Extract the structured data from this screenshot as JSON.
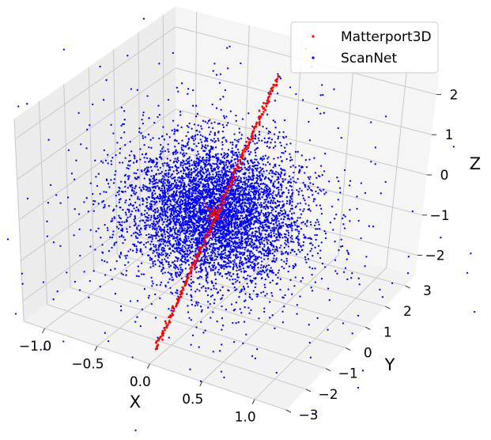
{
  "chart_data": {
    "type": "scatter",
    "projection": "3d",
    "xlabel": "X",
    "ylabel": "Y",
    "zlabel": "Z",
    "x_ticks": [
      "−1.0",
      "−0.5",
      "0.0",
      "0.5",
      "1.0"
    ],
    "y_ticks": [
      "−3",
      "−2",
      "−1",
      "0",
      "1",
      "2",
      "3"
    ],
    "z_ticks": [
      "−2",
      "−1",
      "0",
      "1",
      "2"
    ],
    "xlim": [
      -1.2,
      1.3
    ],
    "ylim": [
      -3,
      3.5
    ],
    "zlim": [
      -2.5,
      2.5
    ],
    "grid": true,
    "legend_position": "top-right",
    "series": [
      {
        "name": "Matterport3D",
        "color": "#ff0000",
        "description_points": "dense thin line from approx (0.0, -3, -2.2) to (0.0, 3, 2.2), plus a small cluster near origin",
        "segments": [
          {
            "from": [
              0.02,
              -2.8,
              -2.2
            ],
            "to": [
              0.02,
              2.8,
              2.2
            ]
          }
        ]
      },
      {
        "name": "ScanNet",
        "color": "#0000ff",
        "distribution": "dense gaussian cloud centered near origin",
        "center": [
          0.0,
          0.0,
          0.0
        ],
        "spread": [
          0.35,
          1.0,
          0.7
        ],
        "count": 6000
      }
    ]
  }
}
